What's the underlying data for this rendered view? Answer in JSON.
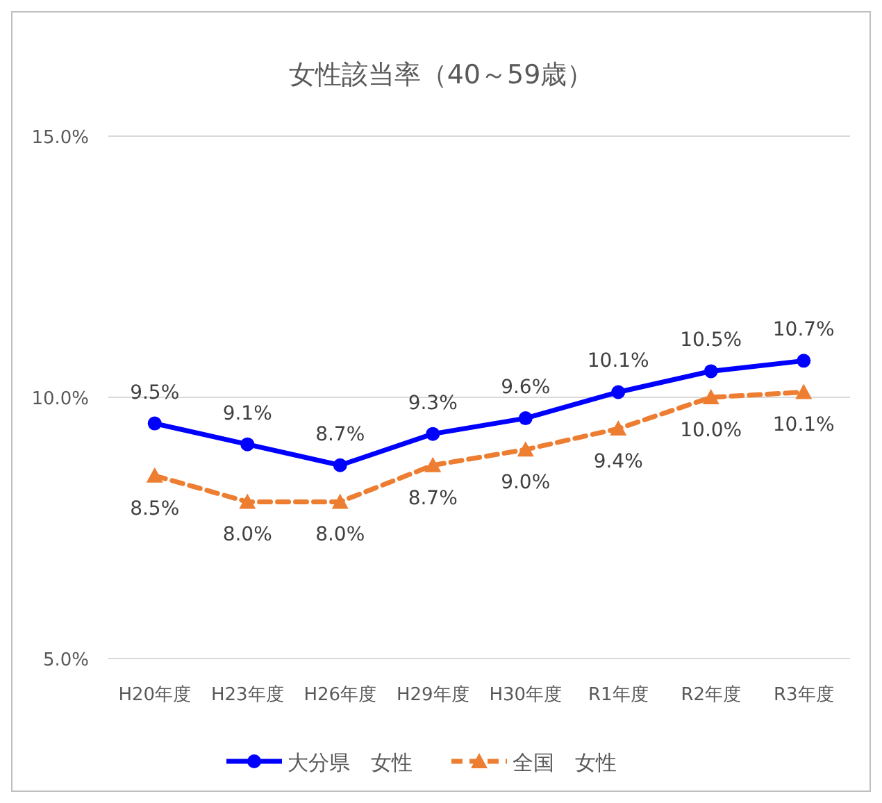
{
  "chart_data": {
    "type": "line",
    "title": "女性該当率（40～59歳）",
    "categories": [
      "H20年度",
      "H23年度",
      "H26年度",
      "H29年度",
      "H30年度",
      "R1年度",
      "R2年度",
      "R3年度"
    ],
    "series": [
      {
        "name": "大分県　女性",
        "color": "#0000ff",
        "values": [
          9.5,
          9.1,
          8.7,
          9.3,
          9.6,
          10.1,
          10.5,
          10.7
        ],
        "marker": "circle",
        "line_style": "solid",
        "value_labels": [
          "9.5%",
          "9.1%",
          "8.7%",
          "9.3%",
          "9.6%",
          "10.1%",
          "10.5%",
          "10.7%"
        ]
      },
      {
        "name": "全国　女性",
        "color": "#ed7d31",
        "values": [
          8.5,
          8.0,
          8.0,
          8.7,
          9.0,
          9.4,
          10.0,
          10.1
        ],
        "marker": "triangle",
        "line_style": "dashed",
        "value_labels": [
          "8.5%",
          "8.0%",
          "8.0%",
          "8.7%",
          "9.0%",
          "9.4%",
          "10.0%",
          "10.1%"
        ]
      }
    ],
    "ylim": [
      5,
      15
    ],
    "yticks": [
      {
        "value": 5,
        "label": "5.0%"
      },
      {
        "value": 10,
        "label": "10.0%"
      },
      {
        "value": 15,
        "label": "15.0%"
      }
    ],
    "grid": "y",
    "legend": "bottom"
  }
}
